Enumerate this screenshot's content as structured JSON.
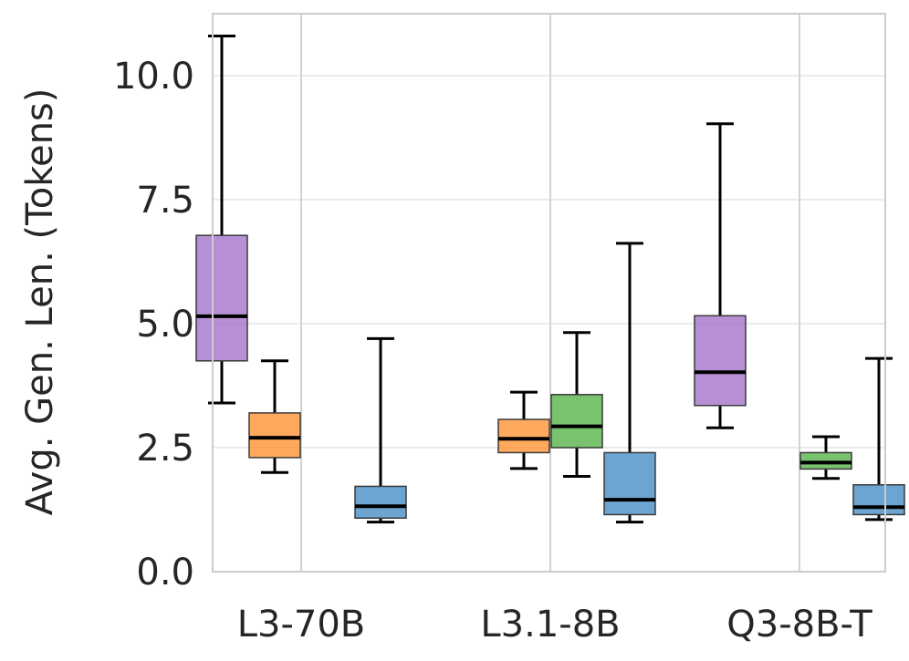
{
  "chart_data": {
    "type": "box",
    "title": "",
    "xlabel": "",
    "ylabel": "Avg. Gen. Len. (Tokens)",
    "ylim": [
      0,
      11.2
    ],
    "yticks": [
      0.0,
      2.5,
      5.0,
      7.5,
      10.0
    ],
    "ytick_labels": [
      "0.0",
      "2.5",
      "5.0",
      "7.5",
      "10.0"
    ],
    "grid": true,
    "categories": [
      "L3-70B",
      "L3.1-8B",
      "Q3-8B-T"
    ],
    "series_colors": [
      "#9e6ac6",
      "#ff8c26",
      "#4caf3f",
      "#3b87c2"
    ],
    "boxes": [
      {
        "category": "L3-70B",
        "series": 0,
        "whisker_low": 3.4,
        "q1": 4.25,
        "median": 5.15,
        "q3": 6.78,
        "whisker_high": 10.8
      },
      {
        "category": "L3-70B",
        "series": 1,
        "whisker_low": 2.0,
        "q1": 2.3,
        "median": 2.7,
        "q3": 3.2,
        "whisker_high": 4.25
      },
      {
        "category": "L3-70B",
        "series": 3,
        "whisker_low": 1.0,
        "q1": 1.08,
        "median": 1.32,
        "q3": 1.72,
        "whisker_high": 4.7
      },
      {
        "category": "L3.1-8B",
        "series": 1,
        "whisker_low": 2.08,
        "q1": 2.4,
        "median": 2.68,
        "q3": 3.07,
        "whisker_high": 3.62
      },
      {
        "category": "L3.1-8B",
        "series": 2,
        "whisker_low": 1.92,
        "q1": 2.5,
        "median": 2.93,
        "q3": 3.57,
        "whisker_high": 4.82
      },
      {
        "category": "L3.1-8B",
        "series": 3,
        "whisker_low": 1.0,
        "q1": 1.15,
        "median": 1.45,
        "q3": 2.4,
        "whisker_high": 6.62
      },
      {
        "category": "Q3-8B-T",
        "series": 0,
        "whisker_low": 2.9,
        "q1": 3.35,
        "median": 4.02,
        "q3": 5.16,
        "whisker_high": 9.03
      },
      {
        "category": "Q3-8B-T",
        "series": 2,
        "whisker_low": 1.88,
        "q1": 2.07,
        "median": 2.2,
        "q3": 2.4,
        "whisker_high": 2.72
      },
      {
        "category": "Q3-8B-T",
        "series": 3,
        "whisker_low": 1.05,
        "q1": 1.15,
        "median": 1.3,
        "q3": 1.75,
        "whisker_high": 4.3
      }
    ]
  }
}
